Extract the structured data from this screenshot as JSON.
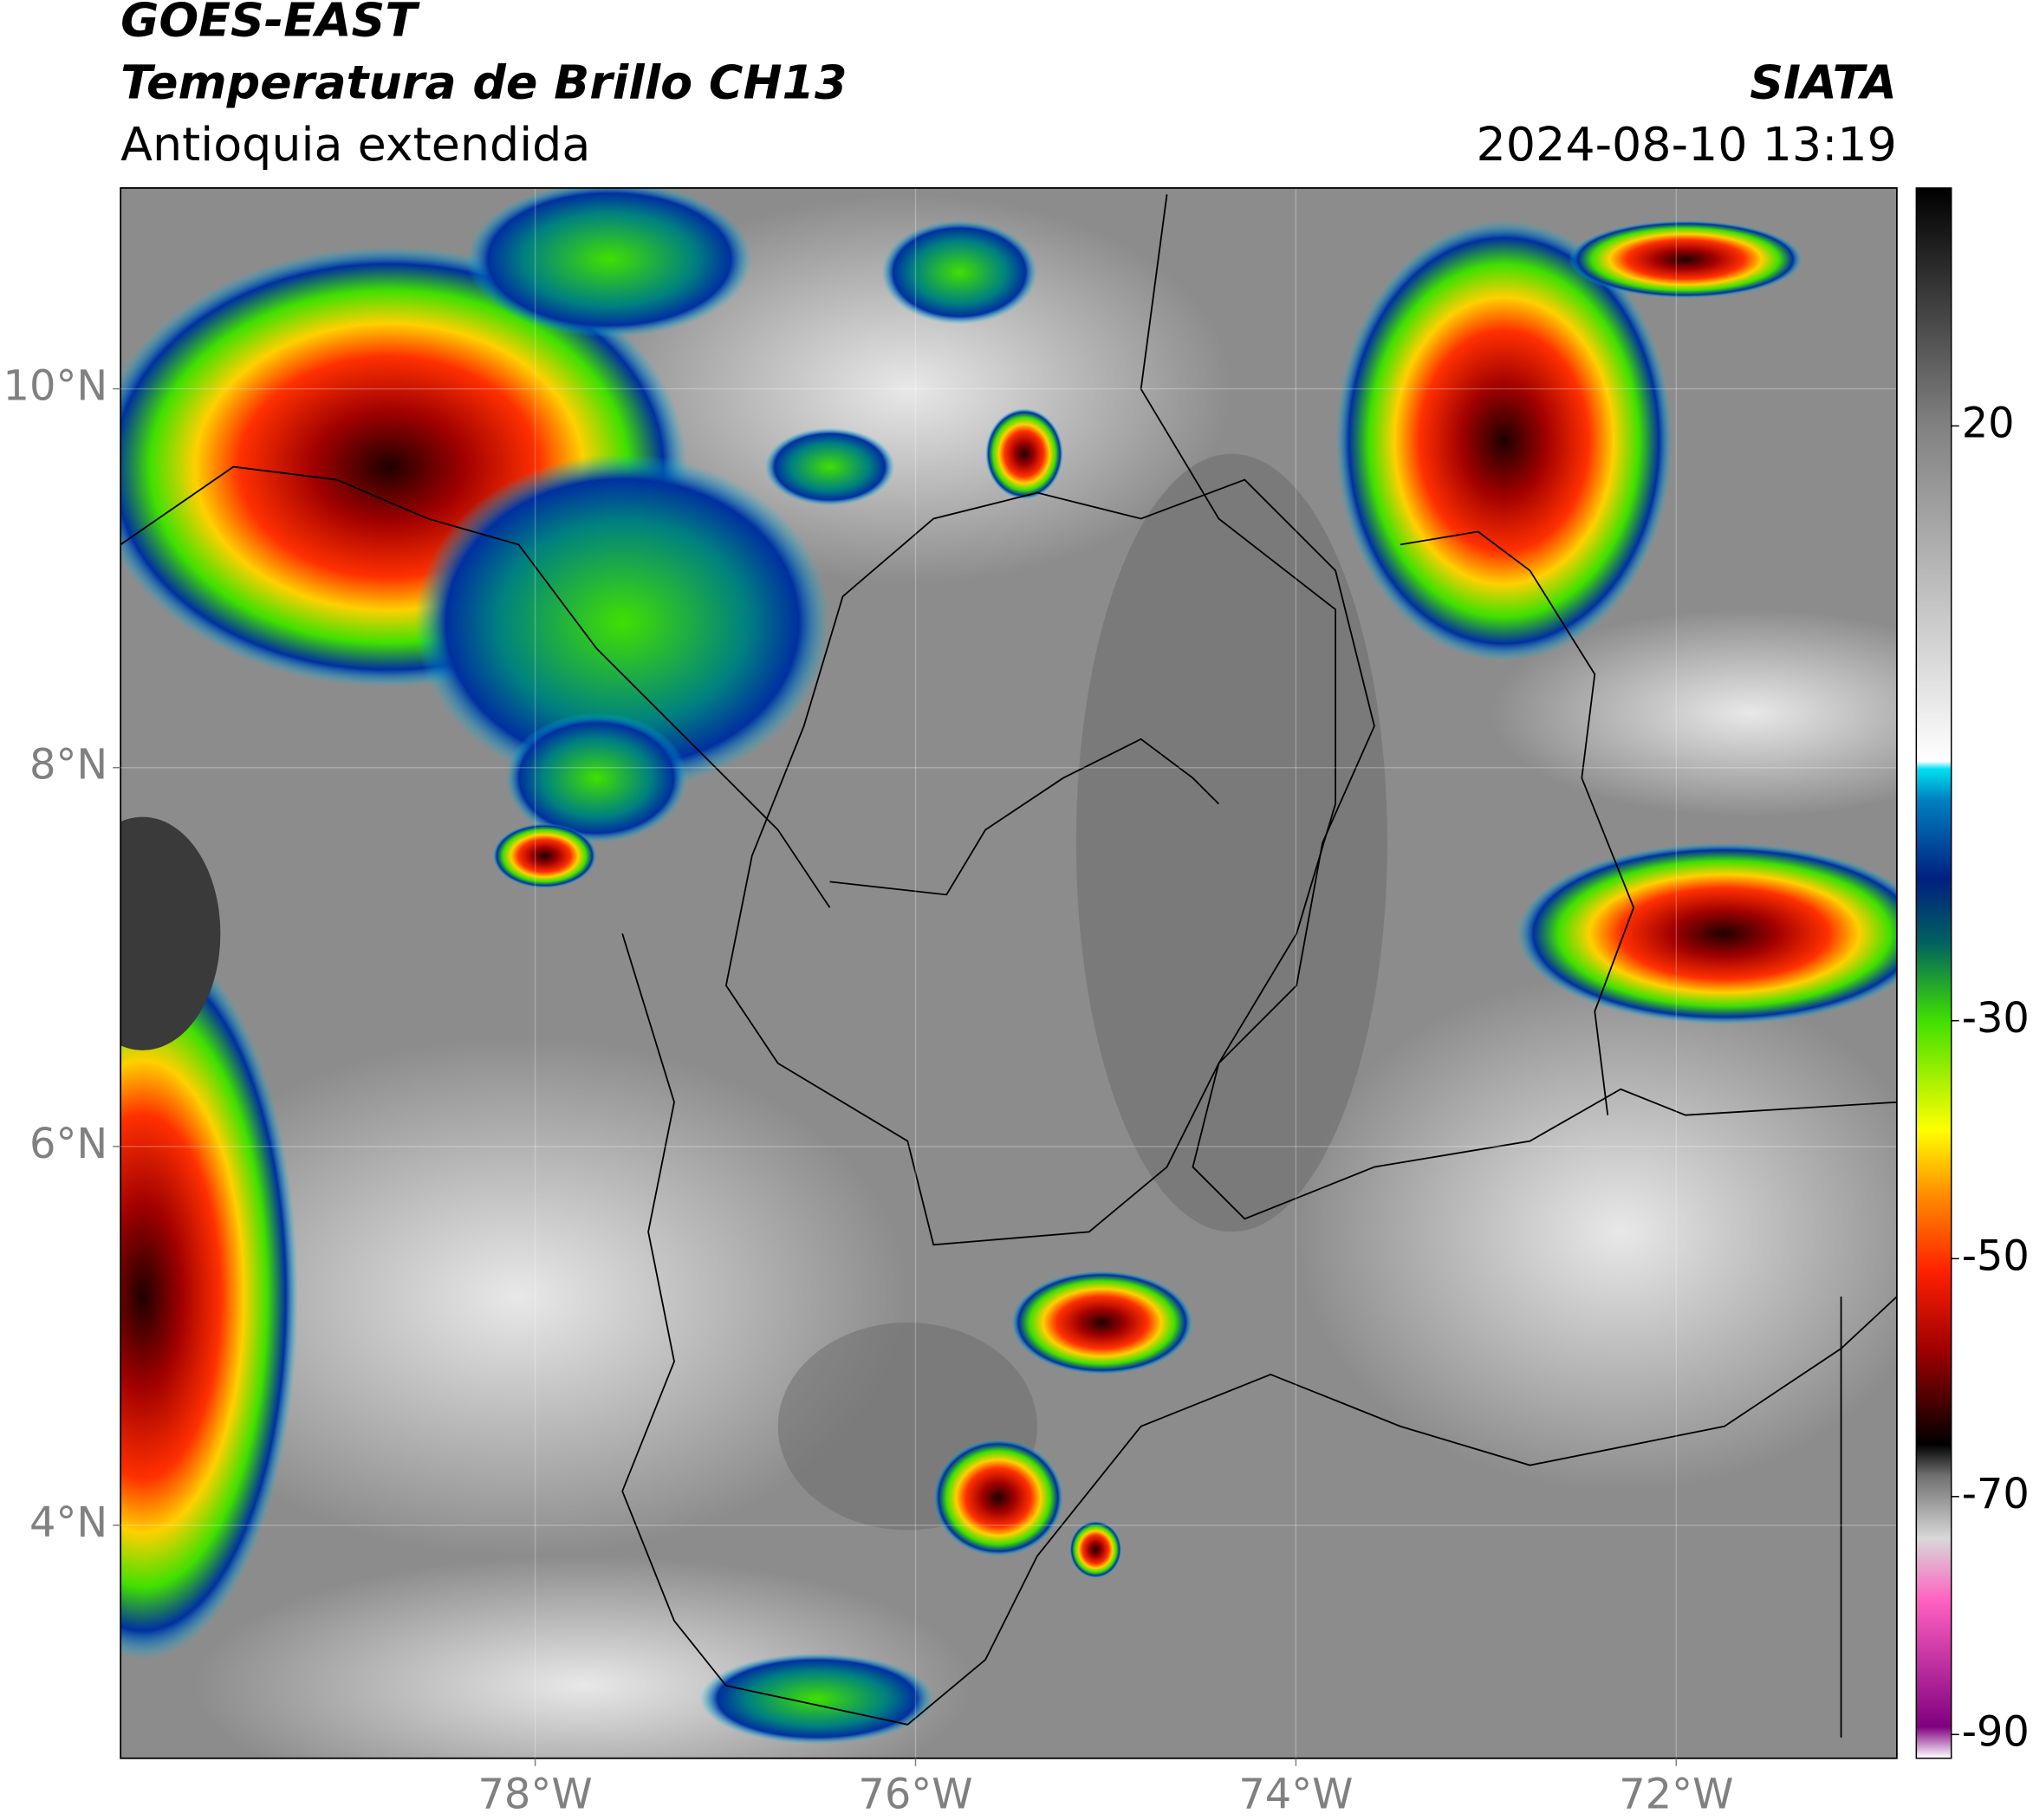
{
  "header": {
    "satellite": "GOES-EAST",
    "product": "Temperatura de Brillo CH13",
    "region": "Antioquia extendida",
    "source": "SIATA",
    "datetime": "2024-08-10 13:19"
  },
  "map": {
    "lon_range": [
      -80.18,
      -70.84
    ],
    "lat_range": [
      2.77,
      11.06
    ],
    "lon_ticks": [
      {
        "value": -78,
        "label": "78°W"
      },
      {
        "value": -76,
        "label": "76°W"
      },
      {
        "value": -74,
        "label": "74°W"
      },
      {
        "value": -72,
        "label": "72°W"
      }
    ],
    "lat_ticks": [
      {
        "value": 10,
        "label": "10°N"
      },
      {
        "value": 8,
        "label": "8°N"
      },
      {
        "value": 6,
        "label": "6°N"
      },
      {
        "value": 4,
        "label": "4°N"
      }
    ]
  },
  "colorbar": {
    "range": [
      -92,
      40
    ],
    "ticks": [
      20,
      -30,
      -50,
      -70,
      -90
    ]
  }
}
